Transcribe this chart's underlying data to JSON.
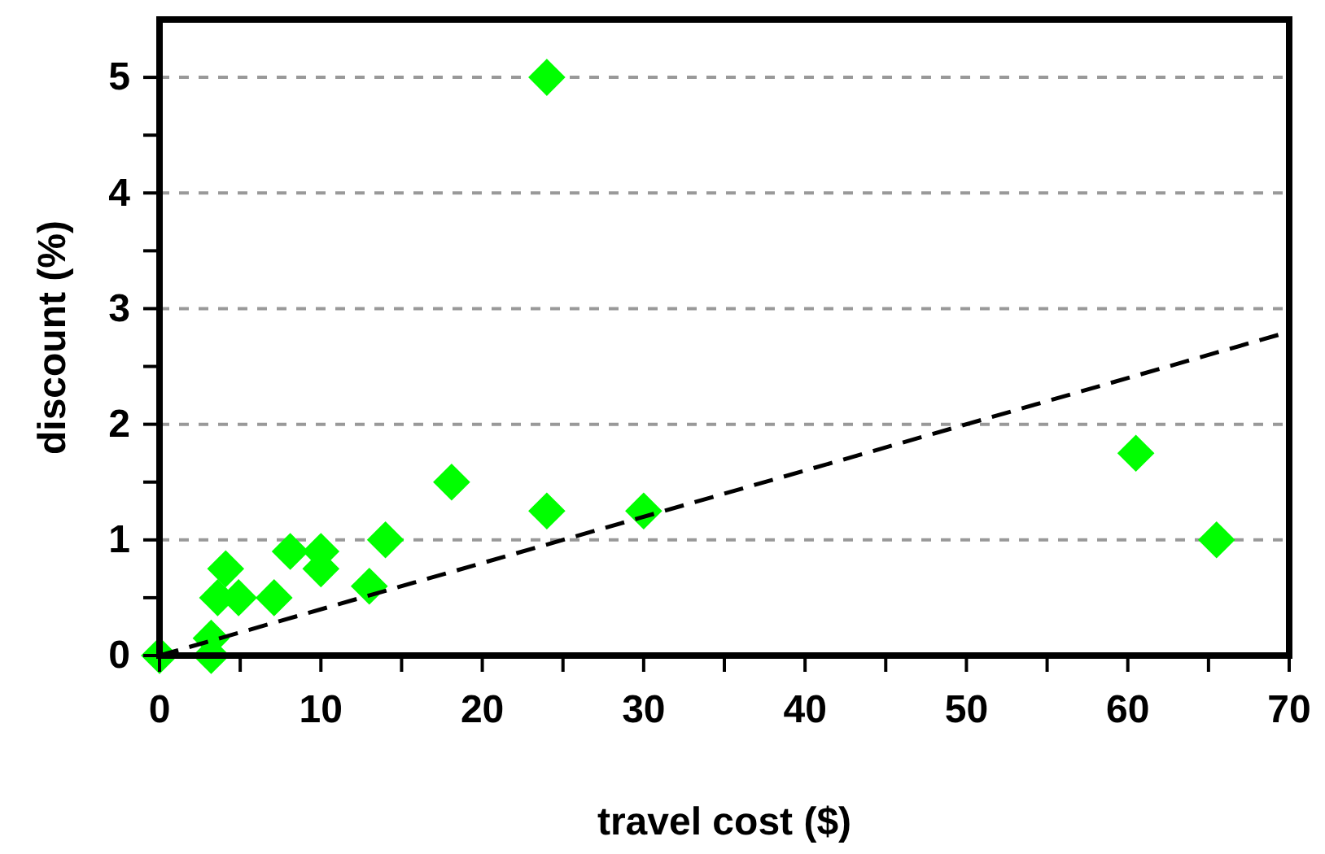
{
  "chart_data": {
    "type": "scatter",
    "xlabel": "travel cost ($)",
    "ylabel": "discount (%)",
    "xlim": [
      0,
      70
    ],
    "ylim": [
      0,
      5.5
    ],
    "xticks": [
      0,
      {
        "value": 5,
        "label": null
      },
      10,
      {
        "value": 15,
        "label": null
      },
      20,
      {
        "value": 25,
        "label": null
      },
      30,
      {
        "value": 35,
        "label": null
      },
      40,
      {
        "value": 45,
        "label": null
      },
      50,
      {
        "value": 55,
        "label": null
      },
      60,
      {
        "value": 65,
        "label": null
      },
      70
    ],
    "yticks": [
      0,
      {
        "value": 0.5,
        "label": null
      },
      1,
      {
        "value": 1.5,
        "label": null
      },
      2,
      {
        "value": 2.5,
        "label": null
      },
      3,
      {
        "value": 3.5,
        "label": null
      },
      4,
      {
        "value": 4.5,
        "label": null
      },
      5
    ],
    "grid": "y",
    "marker": "diamond",
    "series": [
      {
        "color": "#00ff00",
        "x": [
          0,
          3.2,
          3.2,
          4.1,
          3.6,
          4.9,
          7.1,
          8.1,
          10,
          10,
          13,
          14,
          18.1,
          24,
          24,
          30,
          60.5,
          65.5
        ],
        "values": [
          0,
          0,
          0.15,
          0.75,
          0.5,
          0.5,
          0.5,
          0.9,
          0.9,
          0.75,
          0.6,
          1,
          1.5,
          5,
          1.25,
          1.25,
          1.75,
          1
        ]
      },
      {
        "type": "line",
        "color": "#000000",
        "line_style": "dashed",
        "marker": "none",
        "x": [
          0,
          70
        ],
        "values": [
          0,
          2.8
        ]
      }
    ]
  }
}
